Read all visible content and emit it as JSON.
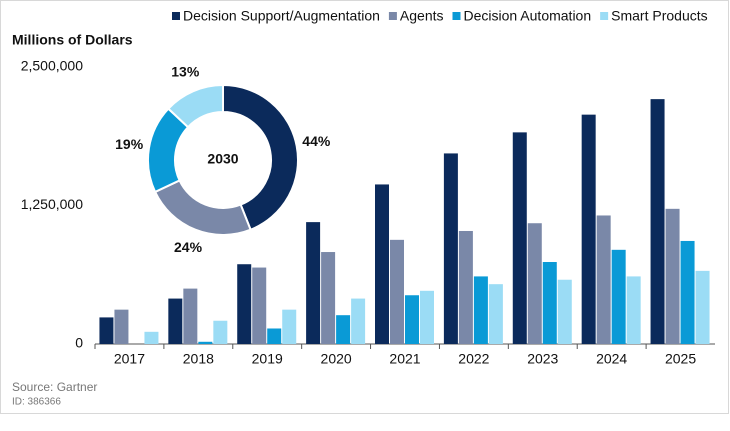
{
  "chart_data": [
    {
      "type": "bar",
      "y_label": "Millions of Dollars",
      "categories": [
        "2017",
        "2018",
        "2019",
        "2020",
        "2021",
        "2022",
        "2023",
        "2024",
        "2025"
      ],
      "series": [
        {
          "name": "Decision Support/Augmentation",
          "color": "#0b2a5b",
          "values": [
            240000,
            410000,
            720000,
            1100000,
            1440000,
            1720000,
            1910000,
            2070000,
            2210000
          ]
        },
        {
          "name": "Agents",
          "color": "#7a88a8",
          "values": [
            310000,
            500000,
            690000,
            830000,
            940000,
            1020000,
            1090000,
            1160000,
            1220000
          ]
        },
        {
          "name": "Decision Automation",
          "color": "#0a9ad6",
          "values": [
            0,
            20000,
            140000,
            260000,
            440000,
            610000,
            740000,
            850000,
            930000
          ]
        },
        {
          "name": "Smart Products",
          "color": "#9bdcf5",
          "values": [
            110000,
            210000,
            310000,
            410000,
            480000,
            540000,
            580000,
            610000,
            660000
          ]
        }
      ],
      "ylim": [
        0,
        2500000
      ],
      "yticks": [
        0,
        {
          "value": 1250000,
          "label": "1,250,000"
        },
        {
          "value": 2500000,
          "label": "2,500,000"
        }
      ],
      "grid": false,
      "legend": "top"
    },
    {
      "type": "donut",
      "center_label": "2030",
      "categories": [
        "Decision Support/Augmentation",
        "Agents",
        "Decision Automation",
        "Smart Products"
      ],
      "values": [
        44,
        24,
        19,
        13
      ],
      "value_labels": [
        "44%",
        "24%",
        "19%",
        "13%"
      ],
      "colors": [
        "#0b2a5b",
        "#7a88a8",
        "#0a9ad6",
        "#9bdcf5"
      ]
    }
  ],
  "footer": {
    "source": "Source: Gartner",
    "id": "ID: 386366"
  }
}
